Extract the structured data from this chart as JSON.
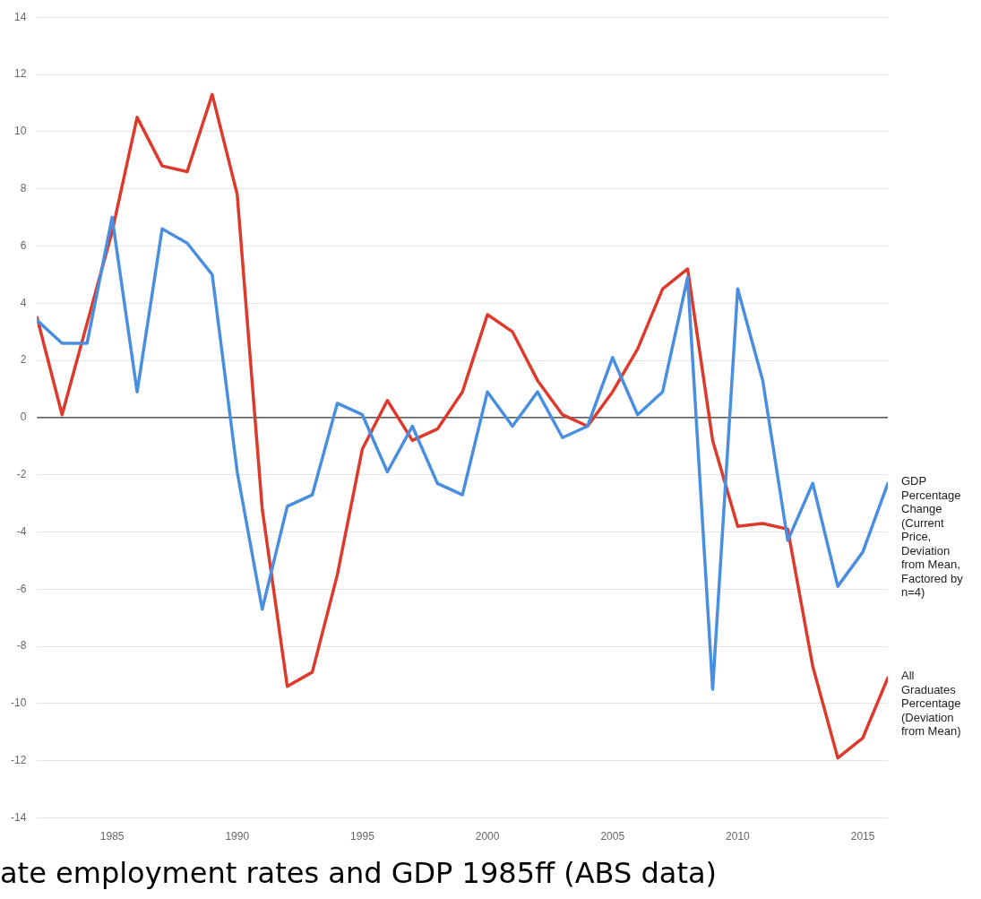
{
  "chart_data": {
    "type": "line",
    "x": [
      1982,
      1983,
      1984,
      1985,
      1986,
      1987,
      1988,
      1989,
      1990,
      1991,
      1992,
      1993,
      1994,
      1995,
      1996,
      1997,
      1998,
      1999,
      2000,
      2001,
      2002,
      2003,
      2004,
      2005,
      2006,
      2007,
      2008,
      2009,
      2010,
      2011,
      2012,
      2013,
      2014,
      2015,
      2016
    ],
    "series": [
      {
        "name": "GDP Percentage Change (Current Price, Deviation from Mean, Factored by n=4)",
        "color": "#4a8fdf",
        "values": [
          3.4,
          2.6,
          2.6,
          7.0,
          0.9,
          6.6,
          6.1,
          5.0,
          -1.9,
          -6.7,
          -3.1,
          -2.7,
          0.5,
          0.1,
          -1.9,
          -0.3,
          -2.3,
          -2.7,
          0.9,
          -0.3,
          0.9,
          -0.7,
          -0.3,
          2.1,
          0.1,
          0.9,
          4.9,
          -9.5,
          4.5,
          1.3,
          -4.3,
          -2.3,
          -5.9,
          -4.7,
          -2.3
        ]
      },
      {
        "name": "All Graduates Percentage (Deviation from Mean)",
        "color": "#db3a2c",
        "values": [
          3.5,
          0.1,
          3.3,
          6.5,
          10.5,
          8.8,
          8.6,
          11.3,
          7.8,
          -3.2,
          -9.4,
          -8.9,
          -5.5,
          -1.1,
          0.6,
          -0.8,
          -0.4,
          0.9,
          3.6,
          3.0,
          1.3,
          0.1,
          -0.3,
          0.9,
          2.4,
          4.5,
          5.2,
          -0.8,
          -3.8,
          -3.7,
          -3.9,
          -8.7,
          -11.9,
          -11.2,
          -9.1
        ]
      }
    ],
    "xlim": [
      1982,
      2016
    ],
    "xticks": [
      1985,
      1990,
      1995,
      2000,
      2005,
      2010,
      2015
    ],
    "ylim": [
      -14,
      14
    ],
    "yticks": [
      -14,
      -12,
      -10,
      -8,
      -6,
      -4,
      -2,
      0,
      2,
      4,
      6,
      8,
      10,
      12,
      14
    ],
    "grid": "y",
    "marker": "none",
    "line_style": "solid",
    "ref_lines": [
      {
        "axis": "y",
        "value": 0,
        "color": "#333333"
      }
    ],
    "annotations": [
      "ate employment rates and GDP 1985ff (ABS data)"
    ]
  }
}
